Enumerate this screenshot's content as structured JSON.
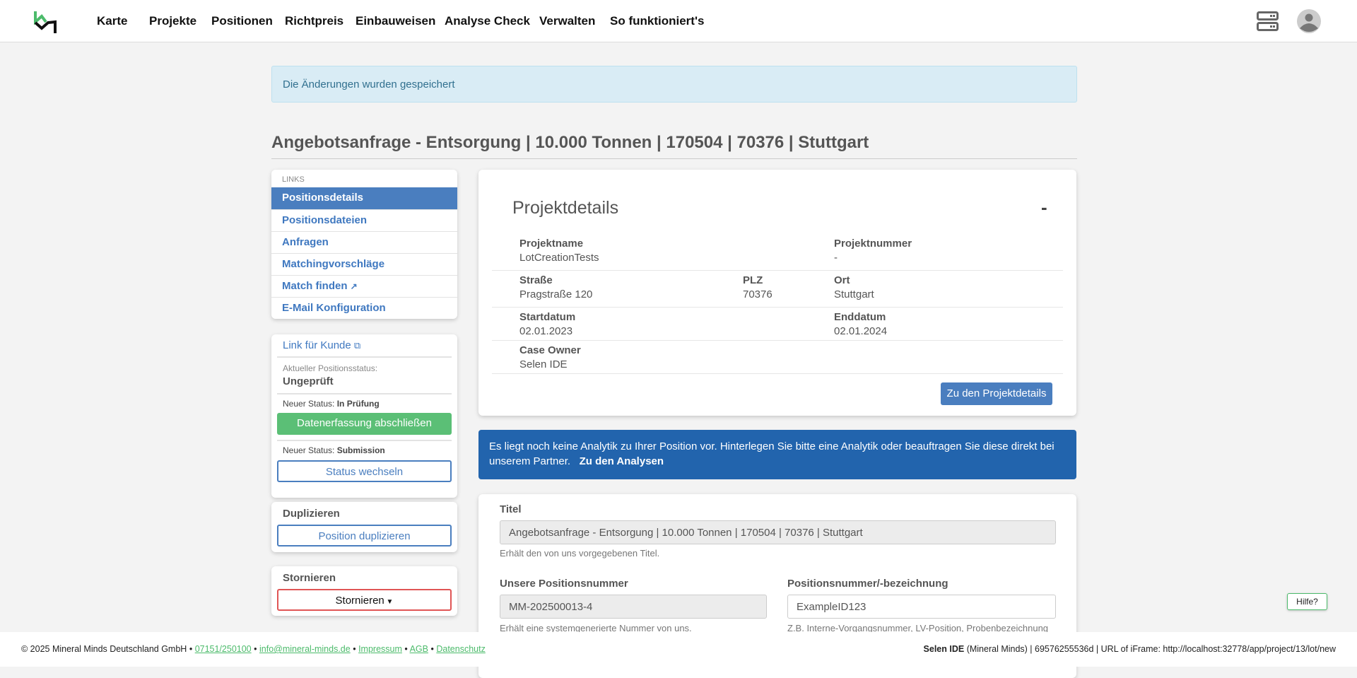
{
  "nav": {
    "items": [
      "Karte",
      "Projekte",
      "Positionen",
      "Richtpreis",
      "Einbauweisen",
      "Analyse Check",
      "Verwalten",
      "So funktioniert's"
    ]
  },
  "alert": "Die Änderungen wurden gespeichert",
  "page_title": "Angebotsanfrage - Entsorgung | 10.000 Tonnen | 170504 | 70376 | Stuttgart",
  "sidebar": {
    "links_header": "LINKS",
    "links": [
      "Positionsdetails",
      "Positionsdateien",
      "Anfragen",
      "Matchingvorschläge",
      "Match finden",
      "E-Mail Konfiguration"
    ],
    "customer_link": "Link für Kunde",
    "current_status_label": "Aktueller Positionsstatus:",
    "current_status": "Ungeprüft",
    "new_status_prefix": "Neuer Status:",
    "new_status_1": "In Prüfung",
    "button_1": "Datenerfassung abschließen",
    "new_status_2": "Submission",
    "button_2": "Status wechseln",
    "duplicate_header": "Duplizieren",
    "duplicate_button": "Position duplizieren",
    "cancel_header": "Stornieren",
    "cancel_button": "Stornieren"
  },
  "project": {
    "title": "Projektdetails",
    "collapse": "-",
    "fields": {
      "projektname_label": "Projektname",
      "projektname": "LotCreationTests",
      "projektnummer_label": "Projektnummer",
      "projektnummer": "-",
      "strasse_label": "Straße",
      "strasse": "Pragstraße 120",
      "plz_label": "PLZ",
      "plz": "70376",
      "ort_label": "Ort",
      "ort": "Stuttgart",
      "start_label": "Startdatum",
      "start": "02.01.2023",
      "end_label": "Enddatum",
      "end": "02.01.2024",
      "owner_label": "Case Owner",
      "owner": "Selen IDE"
    },
    "button": "Zu den Projektdetails"
  },
  "analytics": {
    "text": "Es liegt noch keine Analytik zu Ihrer Position vor. Hinterlegen Sie bitte eine Analytik oder beauftragen Sie diese direkt bei unserem Partner.",
    "link": "Zu den Analysen"
  },
  "form": {
    "title_label": "Titel",
    "title_value": "Angebotsanfrage - Entsorgung | 10.000 Tonnen | 170504 | 70376 | Stuttgart",
    "title_help": "Erhält den von uns vorgegebenen Titel.",
    "our_no_label": "Unsere Positionsnummer",
    "our_no_value": "MM-202500013-4",
    "our_no_help": "Erhält eine systemgenerierte Nummer von uns.",
    "pos_no_label": "Positionsnummer/-bezeichnung",
    "pos_no_value": "ExampleID123",
    "pos_no_help": "Z.B. Interne-Vorgangsnummer, LV-Position, Probenbezeichnung"
  },
  "help_button": "Hilfe?",
  "footer": {
    "copyright": "© 2025 Mineral Minds Deutschland GmbH",
    "phone": "07151/250100",
    "email": "info@mineral-minds.de",
    "impressum": "Impressum",
    "agb": "AGB",
    "datenschutz": "Datenschutz",
    "sep": "•",
    "user": "Selen IDE",
    "user_info": "(Mineral Minds) | 69576255536d | URL of iFrame: http://localhost:32778/app/project/13/lot/new"
  },
  "colors": {
    "primary": "#4a7ebf",
    "success": "#5bbf76",
    "danger": "#e05555",
    "info_dark": "#2264ad"
  }
}
